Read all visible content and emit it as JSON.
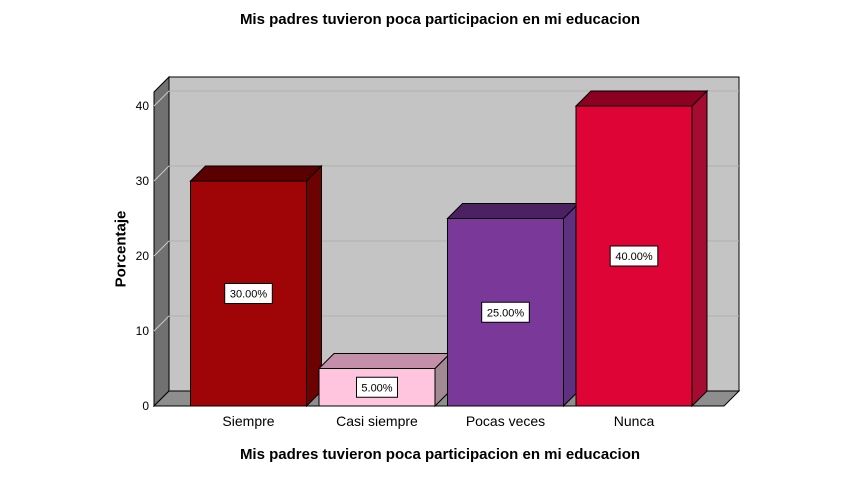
{
  "chart_data": {
    "type": "bar",
    "style": "3d-effect",
    "title": "Mis padres tuvieron poca participacion en mi educacion",
    "xlabel": "Mis padres tuvieron poca participacion en mi educacion",
    "ylabel": "Porcentaje",
    "categories": [
      "Siempre",
      "Casi siempre",
      "Pocas veces",
      "Nunca"
    ],
    "values": [
      30,
      5,
      25,
      40
    ],
    "value_labels": [
      "30.00%",
      "5.00%",
      "25.00%",
      "40.00%"
    ],
    "yticks": [
      0,
      10,
      20,
      30,
      40
    ],
    "ylim": [
      0,
      42
    ],
    "grid": true,
    "legend": null,
    "bar_colors": [
      {
        "front": "#9F0506",
        "top": "#5A0001",
        "side": "#6D0203"
      },
      {
        "front": "#FFC4DE",
        "top": "#C38FA9",
        "side": "#A18A93"
      },
      {
        "front": "#7A3899",
        "top": "#4C2162",
        "side": "#5E3080"
      },
      {
        "front": "#DE0435",
        "top": "#8C0022",
        "side": "#A60C31"
      }
    ],
    "wall_colors": {
      "back": "#C4C4C4",
      "left": "#717171",
      "floor": "#8E8E8E",
      "grid_back": "#AFAFAF",
      "grid_left": "#C9C9C9",
      "outline": "#000000"
    },
    "value_label_box": {
      "fill": "#FFFFFF",
      "border": "#000000",
      "text": "#000000"
    }
  }
}
